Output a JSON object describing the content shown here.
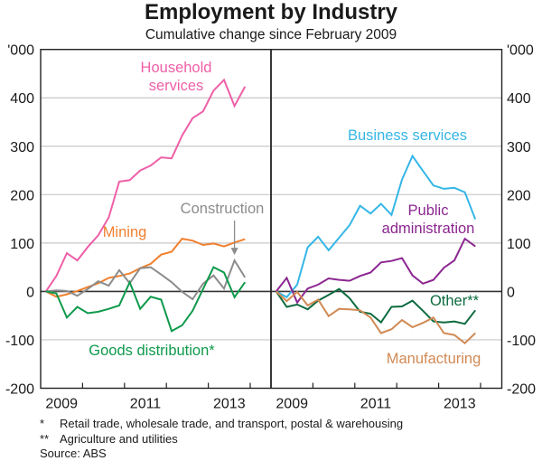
{
  "chart_data": {
    "type": "line",
    "title": "Employment by Industry",
    "subtitle": "Cumulative change since February 2009",
    "ylabel": "'000",
    "ylim": [
      -200,
      500
    ],
    "yticks": [
      -200,
      -100,
      0,
      100,
      200,
      300,
      400
    ],
    "ytick_labels": [
      "-200",
      "-100",
      "0",
      "100",
      "200",
      "300",
      "400",
      "'000"
    ],
    "x_start": "Feb 2009",
    "x_frequency": "quarterly",
    "xlim_years": [
      2009,
      2014.5
    ],
    "xtick_labels": [
      "2009",
      "2011",
      "2013"
    ],
    "grid": true,
    "panels": [
      {
        "name": "left",
        "series": [
          {
            "name": "Household services",
            "color": "#ee5fa7",
            "label_lines": [
              "Household",
              "services"
            ],
            "values": [
              0,
              32,
              79,
              64,
              92,
              116,
              153,
              227,
              230,
              250,
              260,
              277,
              275,
              322,
              358,
              372,
              415,
              437,
              383,
              423
            ]
          },
          {
            "name": "Mining",
            "color": "#f07f2e",
            "label_lines": [
              "Mining"
            ],
            "values": [
              0,
              -11,
              -6,
              1,
              9,
              17,
              28,
              32,
              37,
              48,
              57,
              76,
              82,
              109,
              105,
              96,
              99,
              93,
              101,
              108
            ]
          },
          {
            "name": "Construction",
            "color": "#8c8c8c",
            "label_lines": [
              "Construction"
            ],
            "values": [
              0,
              2,
              1,
              -9,
              5,
              21,
              12,
              44,
              17,
              48,
              50,
              35,
              19,
              -1,
              -16,
              16,
              33,
              6,
              64,
              29
            ]
          },
          {
            "name": "Goods distribution*",
            "color": "#0f9a4c",
            "label_lines": [
              "Goods distribution*"
            ],
            "values": [
              0,
              -4,
              -54,
              -32,
              -45,
              -42,
              -36,
              -29,
              19,
              -36,
              -11,
              -17,
              -82,
              -70,
              -40,
              5,
              50,
              39,
              -12,
              19
            ]
          }
        ]
      },
      {
        "name": "right",
        "series": [
          {
            "name": "Business services",
            "color": "#35b6e6",
            "label_lines": [
              "Business services"
            ],
            "values": [
              0,
              -12,
              14,
              91,
              113,
              85,
              111,
              137,
              177,
              161,
              181,
              158,
              231,
              280,
              249,
              219,
              212,
              214,
              205,
              149
            ]
          },
          {
            "name": "Public administration",
            "color": "#8b2690",
            "label_lines": [
              "Public",
              "administration"
            ],
            "values": [
              0,
              28,
              -23,
              6,
              14,
              27,
              24,
              22,
              32,
              39,
              60,
              63,
              69,
              33,
              16,
              24,
              49,
              64,
              109,
              93
            ]
          },
          {
            "name": "Other**",
            "color": "#0d6b3f",
            "label_lines": [
              "Other**"
            ],
            "values": [
              0,
              -32,
              -27,
              -37,
              -19,
              -7,
              5,
              -14,
              -42,
              -46,
              -64,
              -32,
              -31,
              -19,
              -40,
              -62,
              -64,
              -62,
              -67,
              -39
            ]
          },
          {
            "name": "Manufacturing",
            "color": "#d08a55",
            "label_lines": [
              "Manufacturing"
            ],
            "values": [
              0,
              -20,
              -1,
              -29,
              -17,
              -51,
              -36,
              -37,
              -39,
              -54,
              -86,
              -78,
              -59,
              -74,
              -65,
              -54,
              -86,
              -90,
              -107,
              -86
            ]
          }
        ]
      }
    ],
    "annotations": [
      {
        "text": "Construction arrow",
        "points_to": "Construction",
        "at_index": 18
      }
    ]
  },
  "footnotes": [
    {
      "mark": "*",
      "text": "Retail trade, wholesale trade, and transport, postal & warehousing"
    },
    {
      "mark": "**",
      "text": "Agriculture and utilities"
    }
  ],
  "source": "Source: ABS"
}
